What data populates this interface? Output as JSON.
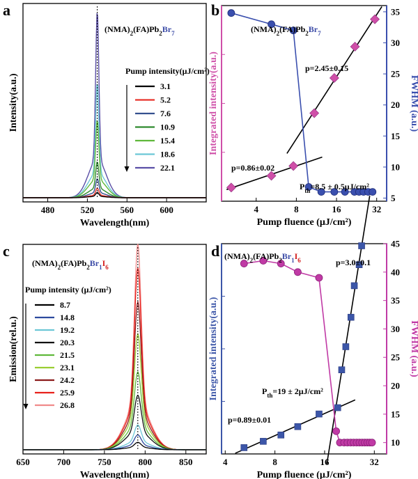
{
  "chart_data": [
    {
      "panel": "a",
      "type": "line",
      "compound": {
        "pre": "(NMA)",
        "s1": "2",
        "mid": "(FA)Pb",
        "s2": "2",
        "br": "Br",
        "s3": "7"
      },
      "xlabel": "Wavelength(nm)",
      "ylabel": "Intensity(a.u.)",
      "xlim": [
        455,
        640
      ],
      "xticks": [
        480,
        520,
        560,
        600
      ],
      "legend_title": "Pump intensity(μJ/cm²)",
      "peak_center": 530,
      "series": [
        {
          "name": "3.1",
          "color": "#000000",
          "peak": 0.025
        },
        {
          "name": "5.2",
          "color": "#e8332b",
          "peak": 0.045
        },
        {
          "name": "7.6",
          "color": "#34508f",
          "peak": 0.09
        },
        {
          "name": "10.9",
          "color": "#2e8b2e",
          "peak": 0.17
        },
        {
          "name": "15.4",
          "color": "#5fb83a",
          "peak": 0.38
        },
        {
          "name": "18.6",
          "color": "#6cc7d6",
          "peak": 0.58
        },
        {
          "name": "22.1",
          "color": "#5a4fa6",
          "peak": 0.96
        }
      ]
    },
    {
      "panel": "b",
      "type": "scatter",
      "compound": {
        "pre": "(NMA)",
        "s1": "2",
        "mid": "(FA)Pb",
        "s2": "2",
        "br": "Br",
        "s3": "7"
      },
      "xlabel": "Pump fluence (μJ/cm²)",
      "ylabel": "Integrated intensity(a.u.)",
      "y2label": "FWHM (a.u.)",
      "x_scale": "log",
      "xlim": [
        2.2,
        38
      ],
      "xticks": [
        4,
        8,
        16,
        32
      ],
      "y2lim": [
        4.5,
        36
      ],
      "y2ticks": [
        5,
        10,
        15,
        20,
        25,
        30,
        35
      ],
      "integrated": {
        "x": [
          2.6,
          5.2,
          7.6,
          10.9,
          15.4,
          22.0,
          31.0
        ],
        "y": [
          0.07,
          0.13,
          0.18,
          0.45,
          0.63,
          0.79,
          0.93
        ]
      },
      "fwhm": {
        "x": [
          2.6,
          5.2,
          7.6,
          9.9,
          12.3,
          15.4,
          18.5,
          21.8,
          23.6,
          25.5,
          27.6,
          29.8
        ],
        "y": [
          34.8,
          33.0,
          32.0,
          6.8,
          6.0,
          6.0,
          6.0,
          6.0,
          6.0,
          6.0,
          6.0,
          6.0
        ]
      },
      "fit_low_label": "p=0.86±0.02",
      "fit_high_label": "p=2.45±0.15",
      "threshold_label": {
        "p": "P",
        "sub": "th",
        "rest": "=8.5 ± 0.5μJ/cm²"
      }
    },
    {
      "panel": "c",
      "type": "line",
      "compound": {
        "pre": "(NMA)",
        "s1": "2",
        "mid": "(FA)Pb",
        "s2": "2",
        "br": "Br",
        "s3": "1",
        "i": "I",
        "s4": "6"
      },
      "xlabel": "Wavelength(nm)",
      "ylabel": "Emission(rel.u.)",
      "xlim": [
        650,
        875
      ],
      "xticks": [
        650,
        700,
        750,
        800,
        850
      ],
      "legend_title": "Pump intensity (μJ/cm²)",
      "peak_center": 791,
      "series": [
        {
          "name": "8.7",
          "color": "#000000",
          "peak": 0.03
        },
        {
          "name": "14.8",
          "color": "#2c4a9e",
          "peak": 0.06
        },
        {
          "name": "19.2",
          "color": "#6cc7d6",
          "peak": 0.1
        },
        {
          "name": "20.3",
          "color": "#111111",
          "peak": 0.22
        },
        {
          "name": "21.5",
          "color": "#5fb83a",
          "peak": 0.33
        },
        {
          "name": "23.1",
          "color": "#9acd32",
          "peak": 0.52
        },
        {
          "name": "24.2",
          "color": "#8b1a1a",
          "peak": 0.68
        },
        {
          "name": "25.9",
          "color": "#e8201b",
          "peak": 0.85
        },
        {
          "name": "26.8",
          "color": "#f08a8a",
          "peak": 0.97
        }
      ]
    },
    {
      "panel": "d",
      "type": "scatter",
      "compound": {
        "pre": "(NMA)",
        "s1": "2",
        "mid": "(FA)Pb",
        "s2": "2",
        "br": "Br",
        "s3": "1",
        "i": "I",
        "s4": "6"
      },
      "xlabel": "Pump fluence (μJ/cm²)",
      "ylabel": "Integrated intensity(a.u.)",
      "y2label": "FWHM (a.u.)",
      "x_scale": "log",
      "xlim": [
        3.8,
        38
      ],
      "xticks": [
        4,
        8,
        16,
        32
      ],
      "y2lim": [
        8,
        45
      ],
      "y2ticks": [
        10,
        15,
        20,
        25,
        30,
        35,
        40,
        45
      ],
      "integrated": {
        "x": [
          5.2,
          6.8,
          8.7,
          11.0,
          14.8,
          19.2,
          20.3,
          21.5,
          23.1,
          24.2,
          25.9,
          26.8
        ],
        "y": [
          0.03,
          0.06,
          0.09,
          0.13,
          0.19,
          0.22,
          0.4,
          0.51,
          0.65,
          0.8,
          0.9,
          0.99
        ]
      },
      "fwhm": {
        "x": [
          5.2,
          6.8,
          8.7,
          11.0,
          14.8,
          18.8,
          19.8,
          21.0,
          22.0,
          23.0,
          24.0,
          25.0,
          26.0,
          27.0,
          28.0,
          29.0,
          30.0,
          31.0
        ],
        "y": [
          41.5,
          42.0,
          41.5,
          40.0,
          39.0,
          12.0,
          10.0,
          10.0,
          10.0,
          10.0,
          10.0,
          10.0,
          10.0,
          10.0,
          10.0,
          10.0,
          10.0,
          10.0
        ]
      },
      "fit_low_label": "p=0.89±0.01",
      "fit_high_label": "p=3.0±0.1",
      "threshold_label": {
        "p": "P",
        "sub": "th",
        "rest": "=19 ± 2μJ/cm²"
      }
    }
  ]
}
